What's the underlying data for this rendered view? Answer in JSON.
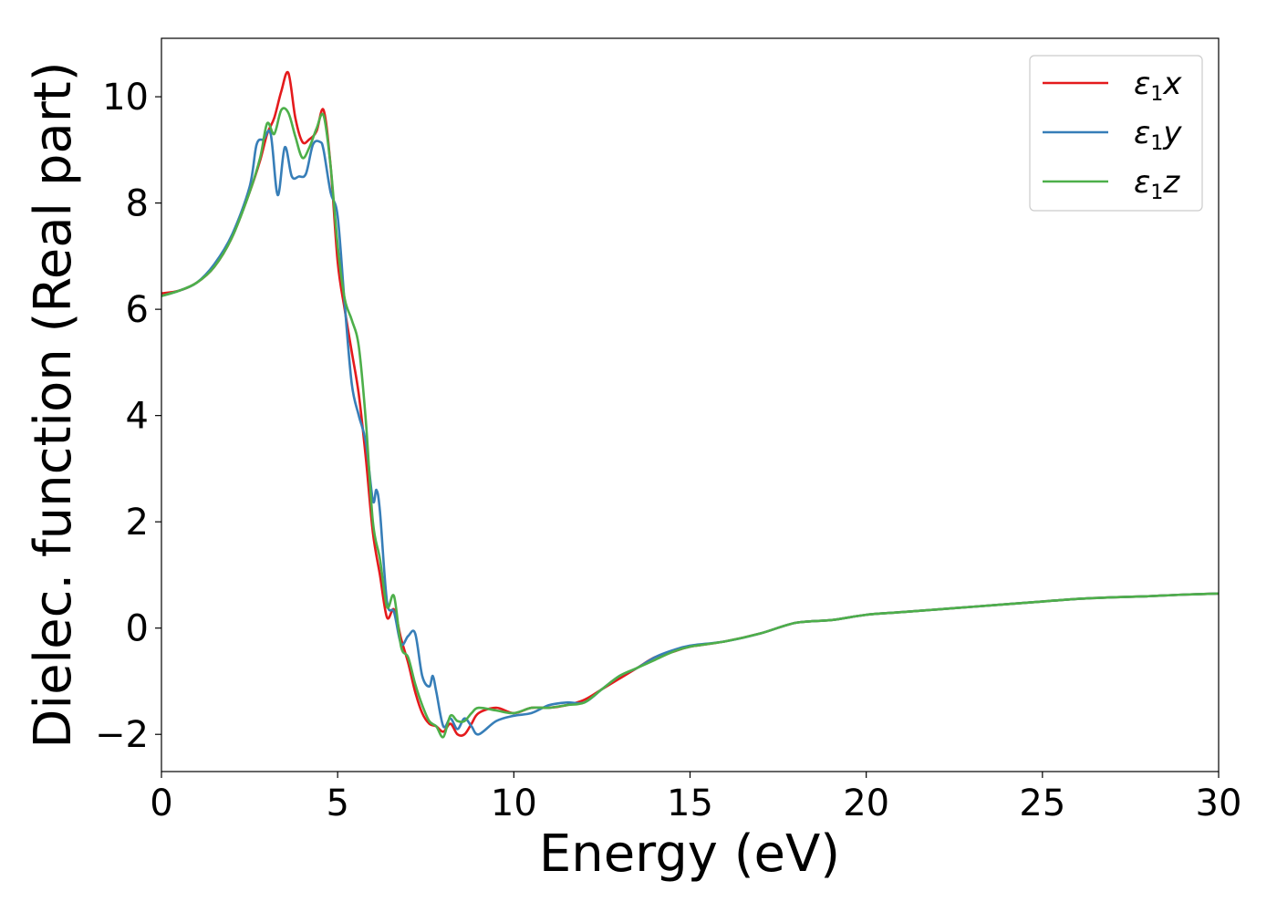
{
  "chart_data": {
    "type": "line",
    "title": "",
    "xlabel": "Energy (eV)",
    "ylabel": "Dielec. function (Real part)",
    "xlim": [
      0,
      30
    ],
    "ylim": [
      -2.7,
      11.1
    ],
    "xticks": [
      0,
      5,
      10,
      15,
      20,
      25,
      30
    ],
    "yticks": [
      -2,
      0,
      2,
      4,
      6,
      8,
      10
    ],
    "xtick_labels": [
      "0",
      "5",
      "10",
      "15",
      "20",
      "25",
      "30"
    ],
    "ytick_labels": [
      "−2",
      "0",
      "2",
      "4",
      "6",
      "8",
      "10"
    ],
    "grid": false,
    "legend_position": "top-right",
    "series": [
      {
        "name": "ε₁x",
        "symbol": "ε",
        "subscript": "1",
        "component": "x",
        "color": "#e41a1c",
        "x": [
          0,
          0.5,
          1,
          1.5,
          2,
          2.5,
          2.8,
          3.0,
          3.2,
          3.4,
          3.6,
          3.8,
          4.0,
          4.2,
          4.4,
          4.6,
          4.8,
          5.0,
          5.2,
          5.4,
          5.6,
          5.8,
          6.0,
          6.2,
          6.4,
          6.6,
          6.8,
          7.0,
          7.2,
          7.4,
          7.6,
          7.8,
          8.0,
          8.2,
          8.4,
          8.6,
          8.8,
          9.0,
          9.5,
          10,
          10.5,
          11,
          11.5,
          12,
          12.5,
          13,
          13.5,
          14,
          14.5,
          15,
          16,
          17,
          18,
          19,
          20,
          21,
          22,
          23,
          24,
          25,
          26,
          27,
          28,
          29,
          30
        ],
        "y": [
          6.3,
          6.35,
          6.5,
          6.8,
          7.35,
          8.2,
          8.8,
          9.3,
          9.6,
          10.1,
          10.45,
          9.6,
          9.15,
          9.2,
          9.35,
          9.75,
          8.7,
          6.9,
          6.0,
          5.2,
          4.4,
          3.2,
          1.8,
          1.0,
          0.2,
          0.35,
          -0.2,
          -0.65,
          -1.2,
          -1.6,
          -1.8,
          -1.85,
          -1.95,
          -1.8,
          -2.0,
          -2.0,
          -1.8,
          -1.6,
          -1.5,
          -1.6,
          -1.5,
          -1.5,
          -1.45,
          -1.35,
          -1.15,
          -0.95,
          -0.75,
          -0.55,
          -0.45,
          -0.35,
          -0.25,
          -0.1,
          0.1,
          0.15,
          0.25,
          0.3,
          0.35,
          0.4,
          0.45,
          0.5,
          0.55,
          0.58,
          0.6,
          0.63,
          0.65
        ]
      },
      {
        "name": "ε₁y",
        "symbol": "ε",
        "subscript": "1",
        "component": "y",
        "color": "#377eb8",
        "x": [
          0,
          0.5,
          1,
          1.5,
          2,
          2.5,
          2.7,
          2.9,
          3.1,
          3.3,
          3.5,
          3.7,
          3.9,
          4.1,
          4.3,
          4.5,
          4.6,
          4.8,
          5.0,
          5.2,
          5.4,
          5.6,
          5.8,
          6.0,
          6.1,
          6.2,
          6.4,
          6.6,
          6.8,
          7.0,
          7.2,
          7.4,
          7.6,
          7.7,
          7.8,
          8.0,
          8.2,
          8.4,
          8.6,
          8.8,
          9.0,
          9.5,
          10,
          10.5,
          11,
          11.5,
          12,
          12.5,
          13,
          13.5,
          14,
          14.5,
          15,
          16,
          17,
          18,
          19,
          20,
          21,
          22,
          23,
          24,
          25,
          26,
          27,
          28,
          29,
          30
        ],
        "y": [
          6.25,
          6.35,
          6.5,
          6.85,
          7.4,
          8.3,
          9.1,
          9.2,
          9.3,
          8.15,
          9.05,
          8.5,
          8.5,
          8.55,
          9.1,
          9.15,
          9.0,
          8.2,
          7.75,
          6.1,
          4.6,
          4.0,
          3.5,
          2.4,
          2.6,
          2.2,
          0.5,
          0.3,
          -0.3,
          -0.15,
          -0.1,
          -0.9,
          -1.1,
          -0.9,
          -1.2,
          -1.85,
          -1.7,
          -1.9,
          -1.7,
          -1.85,
          -2.0,
          -1.75,
          -1.65,
          -1.6,
          -1.45,
          -1.4,
          -1.4,
          -1.15,
          -0.9,
          -0.75,
          -0.55,
          -0.42,
          -0.33,
          -0.25,
          -0.1,
          0.1,
          0.15,
          0.25,
          0.3,
          0.35,
          0.4,
          0.45,
          0.5,
          0.55,
          0.58,
          0.6,
          0.63,
          0.65
        ]
      },
      {
        "name": "ε₁z",
        "symbol": "ε",
        "subscript": "1",
        "component": "z",
        "color": "#4daf4a",
        "x": [
          0,
          0.5,
          1,
          1.5,
          2,
          2.5,
          2.8,
          3.0,
          3.2,
          3.4,
          3.6,
          3.8,
          4.0,
          4.2,
          4.4,
          4.6,
          4.8,
          5.0,
          5.2,
          5.4,
          5.6,
          5.8,
          6.0,
          6.2,
          6.4,
          6.6,
          6.8,
          7.0,
          7.2,
          7.4,
          7.6,
          7.8,
          8.0,
          8.2,
          8.4,
          8.6,
          8.8,
          9.0,
          9.5,
          10,
          10.5,
          11,
          11.5,
          12,
          12.5,
          13,
          13.5,
          14,
          14.5,
          15,
          16,
          17,
          18,
          19,
          20,
          21,
          22,
          23,
          24,
          25,
          26,
          27,
          28,
          29,
          30
        ],
        "y": [
          6.25,
          6.35,
          6.5,
          6.8,
          7.35,
          8.2,
          8.85,
          9.5,
          9.3,
          9.75,
          9.7,
          9.25,
          8.85,
          9.05,
          9.4,
          9.65,
          8.7,
          7.2,
          6.2,
          5.8,
          5.3,
          3.9,
          2.0,
          1.3,
          0.4,
          0.6,
          -0.35,
          -0.55,
          -1.05,
          -1.45,
          -1.75,
          -1.85,
          -2.05,
          -1.65,
          -1.75,
          -1.75,
          -1.6,
          -1.5,
          -1.55,
          -1.6,
          -1.5,
          -1.5,
          -1.45,
          -1.4,
          -1.15,
          -0.9,
          -0.75,
          -0.6,
          -0.45,
          -0.35,
          -0.25,
          -0.1,
          0.1,
          0.15,
          0.25,
          0.3,
          0.35,
          0.4,
          0.45,
          0.5,
          0.55,
          0.58,
          0.6,
          0.63,
          0.65
        ]
      }
    ]
  }
}
